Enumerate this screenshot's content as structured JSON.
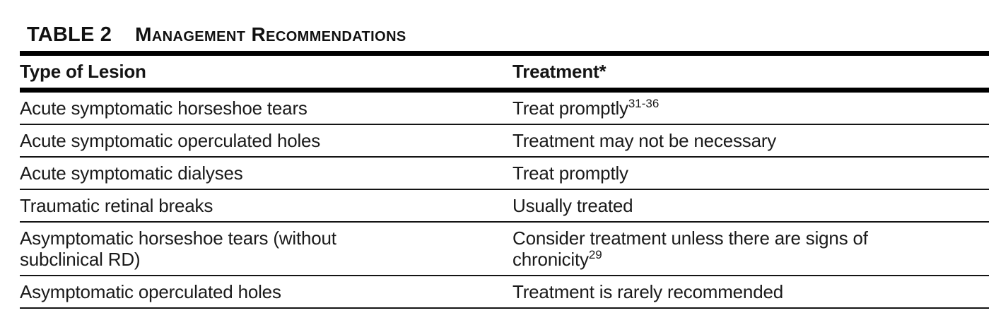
{
  "title": {
    "label": "TABLE 2",
    "caption": "Management Recommendations"
  },
  "columns": {
    "lesion": "Type of Lesion",
    "treatment": "Treatment*"
  },
  "rows": [
    {
      "lesion": "Acute symptomatic horseshoe tears",
      "treatment": "Treat promptly",
      "ref": "31-36"
    },
    {
      "lesion": "Acute symptomatic operculated holes",
      "treatment": "Treatment may not be necessary",
      "ref": ""
    },
    {
      "lesion": "Acute symptomatic dialyses",
      "treatment": "Treat promptly",
      "ref": ""
    },
    {
      "lesion": "Traumatic retinal breaks",
      "treatment": "Usually treated",
      "ref": ""
    },
    {
      "lesion": "Asymptomatic horseshoe tears (without\nsubclinical RD)",
      "treatment": "Consider treatment unless there are signs of\nchronicity",
      "ref": "29"
    },
    {
      "lesion": "Asymptomatic operculated holes",
      "treatment": "Treatment is rarely recommended",
      "ref": ""
    }
  ],
  "colors": {
    "text": "#1a1a1a",
    "rule_thick": "#000000",
    "rule_thin": "#141414",
    "background": "#ffffff"
  }
}
